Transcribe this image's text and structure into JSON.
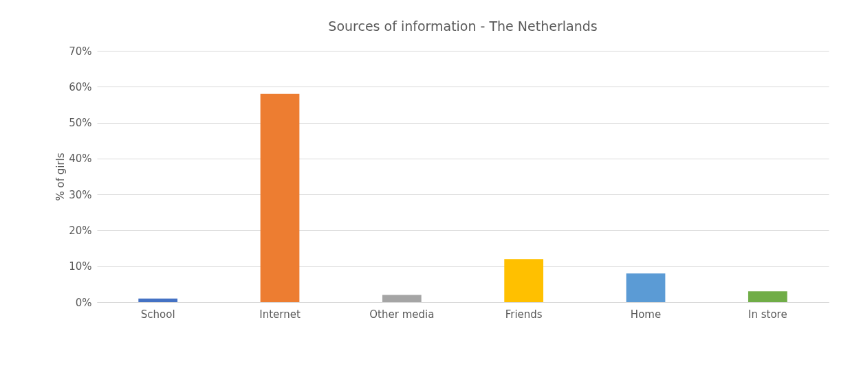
{
  "chart_data": {
    "type": "bar",
    "title": "Sources of information - The Netherlands",
    "ylabel": "% of girls",
    "categories": [
      "School",
      "Internet",
      "Other media",
      "Friends",
      "Home",
      "In store"
    ],
    "values": [
      1,
      58,
      2,
      12,
      8,
      3
    ],
    "colors": [
      "#4472c4",
      "#ed7d31",
      "#a5a5a5",
      "#ffc000",
      "#5b9bd5",
      "#70ad47"
    ],
    "ylim": [
      0,
      70
    ],
    "yticks": [
      {
        "value": 0,
        "label": "0%"
      },
      {
        "value": 10,
        "label": "10%"
      },
      {
        "value": 20,
        "label": "20%"
      },
      {
        "value": 30,
        "label": "30%"
      },
      {
        "value": 40,
        "label": "40%"
      },
      {
        "value": 50,
        "label": "50%"
      },
      {
        "value": 60,
        "label": "60%"
      },
      {
        "value": 70,
        "label": "70%"
      }
    ],
    "grid": "y"
  }
}
